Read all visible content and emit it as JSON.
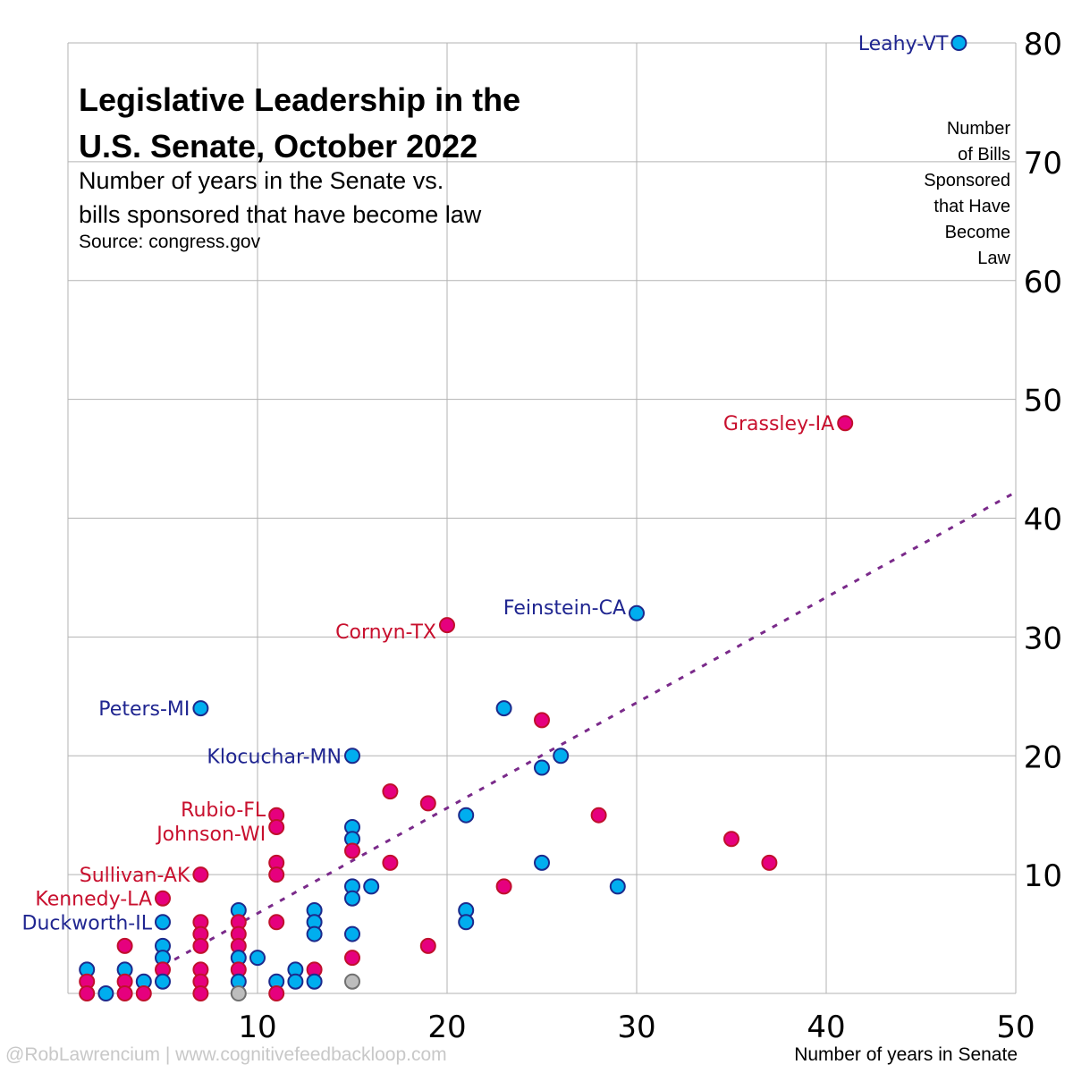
{
  "chart_data": {
    "type": "scatter",
    "title": "Legislative Leadership in the U.S. Senate, October 2022",
    "subtitle_lines": [
      "Number of years in the Senate vs.",
      "bills sponsored that have become law"
    ],
    "source": "Source: congress.gov",
    "xlabel": "Number of years in Senate",
    "ylabel": "Number of Bills Sponsored that Have Become Law",
    "ylabel_lines": [
      "Number",
      "of Bills",
      "Sponsored",
      "that Have",
      "Become",
      "Law"
    ],
    "xlim": [
      0,
      50
    ],
    "ylim": [
      0,
      80
    ],
    "xticks": [
      10,
      20,
      30,
      40,
      50
    ],
    "yticks": [
      10,
      20,
      30,
      40,
      50,
      60,
      70,
      80
    ],
    "grid": true,
    "colors": {
      "D_fill": "#00aeef",
      "D_stroke": "#1c2a8c",
      "R_fill": "#e6007e",
      "R_stroke": "#c0102c",
      "I_fill": "#bdbdbd",
      "I_stroke": "#707070",
      "D_label": "#1f2590",
      "R_label": "#c8102e",
      "trend": "#7a2a8a",
      "grid": "#b3b3b3"
    },
    "trendline": {
      "style": "dotted",
      "from": [
        5,
        2.3
      ],
      "to": [
        50,
        42.2
      ]
    },
    "points": [
      {
        "x": 47,
        "y": 80,
        "party": "D",
        "label": "Leahy-VT"
      },
      {
        "x": 41,
        "y": 48,
        "party": "R",
        "label": "Grassley-IA"
      },
      {
        "x": 30,
        "y": 32,
        "party": "D",
        "label": "Feinstein-CA"
      },
      {
        "x": 20,
        "y": 31,
        "party": "R",
        "label": "Cornyn-TX"
      },
      {
        "x": 7,
        "y": 24,
        "party": "D",
        "label": "Peters-MI"
      },
      {
        "x": 15,
        "y": 20,
        "party": "D",
        "label": "Klocuchar-MN"
      },
      {
        "x": 11,
        "y": 15,
        "party": "R",
        "label": "Rubio-FL"
      },
      {
        "x": 11,
        "y": 14,
        "party": "R",
        "label": "Johnson-WI"
      },
      {
        "x": 7,
        "y": 10,
        "party": "R",
        "label": "Sullivan-AK"
      },
      {
        "x": 5,
        "y": 8,
        "party": "R",
        "label": "Kennedy-LA"
      },
      {
        "x": 5,
        "y": 6,
        "party": "D",
        "label": "Duckworth-IL"
      },
      {
        "x": 23,
        "y": 24,
        "party": "D"
      },
      {
        "x": 25,
        "y": 23,
        "party": "R"
      },
      {
        "x": 26,
        "y": 20,
        "party": "D"
      },
      {
        "x": 25,
        "y": 19,
        "party": "D"
      },
      {
        "x": 17,
        "y": 17,
        "party": "R"
      },
      {
        "x": 19,
        "y": 16,
        "party": "R"
      },
      {
        "x": 21,
        "y": 15,
        "party": "D"
      },
      {
        "x": 28,
        "y": 15,
        "party": "R"
      },
      {
        "x": 35,
        "y": 13,
        "party": "R"
      },
      {
        "x": 37,
        "y": 11,
        "party": "R"
      },
      {
        "x": 15,
        "y": 14,
        "party": "D"
      },
      {
        "x": 15,
        "y": 13,
        "party": "D"
      },
      {
        "x": 15,
        "y": 12,
        "party": "R"
      },
      {
        "x": 17,
        "y": 11,
        "party": "R"
      },
      {
        "x": 25,
        "y": 11,
        "party": "D"
      },
      {
        "x": 11,
        "y": 11,
        "party": "R"
      },
      {
        "x": 11,
        "y": 10,
        "party": "R"
      },
      {
        "x": 15,
        "y": 9,
        "party": "D"
      },
      {
        "x": 16,
        "y": 9,
        "party": "D"
      },
      {
        "x": 15,
        "y": 8,
        "party": "D"
      },
      {
        "x": 23,
        "y": 9,
        "party": "R"
      },
      {
        "x": 29,
        "y": 9,
        "party": "D"
      },
      {
        "x": 21,
        "y": 7,
        "party": "D"
      },
      {
        "x": 21,
        "y": 6,
        "party": "D"
      },
      {
        "x": 11,
        "y": 6,
        "party": "R"
      },
      {
        "x": 13,
        "y": 7,
        "party": "D"
      },
      {
        "x": 13,
        "y": 6,
        "party": "D"
      },
      {
        "x": 13,
        "y": 5,
        "party": "D"
      },
      {
        "x": 15,
        "y": 5,
        "party": "D"
      },
      {
        "x": 19,
        "y": 4,
        "party": "R"
      },
      {
        "x": 15,
        "y": 3,
        "party": "R"
      },
      {
        "x": 15,
        "y": 1,
        "party": "I"
      },
      {
        "x": 13,
        "y": 2,
        "party": "R"
      },
      {
        "x": 13,
        "y": 1,
        "party": "D"
      },
      {
        "x": 12,
        "y": 2,
        "party": "D"
      },
      {
        "x": 12,
        "y": 1,
        "party": "D"
      },
      {
        "x": 11,
        "y": 1,
        "party": "D"
      },
      {
        "x": 11,
        "y": 0,
        "party": "R"
      },
      {
        "x": 10,
        "y": 3,
        "party": "D"
      },
      {
        "x": 9,
        "y": 7,
        "party": "D"
      },
      {
        "x": 9,
        "y": 6,
        "party": "R"
      },
      {
        "x": 9,
        "y": 5,
        "party": "R"
      },
      {
        "x": 9,
        "y": 4,
        "party": "R"
      },
      {
        "x": 9,
        "y": 3,
        "party": "D"
      },
      {
        "x": 9,
        "y": 2,
        "party": "R"
      },
      {
        "x": 9,
        "y": 1,
        "party": "D"
      },
      {
        "x": 9,
        "y": 0,
        "party": "I"
      },
      {
        "x": 7,
        "y": 6,
        "party": "R"
      },
      {
        "x": 7,
        "y": 5,
        "party": "R"
      },
      {
        "x": 7,
        "y": 4,
        "party": "R"
      },
      {
        "x": 7,
        "y": 2,
        "party": "R"
      },
      {
        "x": 7,
        "y": 1,
        "party": "R"
      },
      {
        "x": 7,
        "y": 0,
        "party": "R"
      },
      {
        "x": 5,
        "y": 4,
        "party": "D"
      },
      {
        "x": 5,
        "y": 3,
        "party": "D"
      },
      {
        "x": 5,
        "y": 2,
        "party": "R"
      },
      {
        "x": 5,
        "y": 1,
        "party": "D"
      },
      {
        "x": 4,
        "y": 1,
        "party": "D"
      },
      {
        "x": 4,
        "y": 0,
        "party": "R"
      },
      {
        "x": 3,
        "y": 4,
        "party": "R"
      },
      {
        "x": 3,
        "y": 2,
        "party": "D"
      },
      {
        "x": 3,
        "y": 1,
        "party": "R"
      },
      {
        "x": 3,
        "y": 0,
        "party": "R"
      },
      {
        "x": 2,
        "y": 0,
        "party": "D"
      },
      {
        "x": 1,
        "y": 2,
        "party": "D"
      },
      {
        "x": 1,
        "y": 1,
        "party": "R"
      },
      {
        "x": 1,
        "y": 0,
        "party": "R"
      }
    ]
  },
  "title_lines": [
    "Legislative Leadership in the",
    "U.S. Senate, October 2022"
  ],
  "credit": "@RobLawrencium | www.cognitivefeedbackloop.com"
}
